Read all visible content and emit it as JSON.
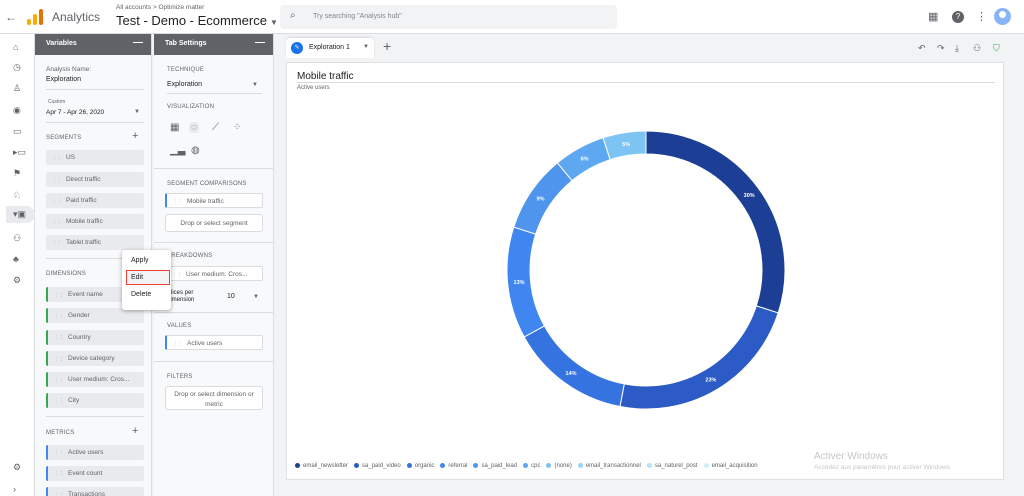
{
  "topbar": {
    "back_icon": "arrow-left-icon",
    "app_name": "Analytics",
    "breadcrumb": "All accounts > Optimize matter",
    "property": "Test - Demo - Ecommerce",
    "search_placeholder": "Try searching \"Analysis hub\"",
    "icons": [
      "apps-icon",
      "help-icon",
      "more-vert-icon",
      "account-icon"
    ]
  },
  "leftnav": {
    "icons": [
      "home-icon",
      "realtime-icon",
      "audience-icon",
      "acquisition-icon",
      "behavior-icon",
      "conversions-icon",
      "flag-icon",
      "attribution-icon",
      "explore-icon",
      "users-icon",
      "hierarchy-icon",
      "admin-icon",
      "settings-icon",
      "expand-icon"
    ]
  },
  "variables": {
    "header": "Variables",
    "analysis_name_label": "Analysis Name:",
    "analysis_name": "Exploration",
    "custom_label": "Custom",
    "date_range": "Apr 7 - Apr 26, 2020",
    "segments_label": "SEGMENTS",
    "segments": [
      "US",
      "Direct traffic",
      "Paid traffic",
      "Mobile traffic",
      "Tablet traffic"
    ],
    "dimensions_label": "DIMENSIONS",
    "dimensions": [
      "Event name",
      "Gender",
      "Country",
      "Device category",
      "User medium: Cros...",
      "City"
    ],
    "metrics_label": "METRICS",
    "metrics": [
      "Active users",
      "Event count",
      "Transactions"
    ]
  },
  "context_menu": {
    "items": [
      "Apply",
      "Edit",
      "Delete"
    ]
  },
  "tab_settings": {
    "header": "Tab Settings",
    "technique_label": "TECHNIQUE",
    "technique": "Exploration",
    "visualization_label": "VISUALIZATION",
    "segment_comparisons_label": "SEGMENT COMPARISONS",
    "segment_comparison": "Mobile traffic",
    "drop_segment": "Drop or select segment",
    "breakdowns_label": "BREAKDOWNS",
    "breakdown": "User medium: Cros...",
    "slices_label_1": "Slices per",
    "slices_label_2": "dimension",
    "slices_value": "10",
    "values_label": "VALUES",
    "value": "Active users",
    "filters_label": "FILTERS",
    "drop_filter_1": "Drop or select dimension or",
    "drop_filter_2": "metric"
  },
  "tabs": {
    "active": "Exploration 1",
    "add_icon": "plus-icon"
  },
  "chart_data": {
    "type": "pie",
    "title": "Mobile traffic",
    "subtitle": "Active users",
    "donut": true,
    "categories": [
      "email_newsletter",
      "sa_paid_video",
      "organic",
      "referral",
      "sa_paid_lead",
      "cpc",
      "(none)",
      "email_transactionnel",
      "sa_naturel_post",
      "email_acquisition"
    ],
    "values": [
      30,
      23,
      14,
      13,
      9,
      6,
      5,
      0,
      0,
      0
    ],
    "labels": [
      "30%",
      "23%",
      "14%",
      "13%",
      "9%",
      "6%",
      "5%",
      "",
      "",
      ""
    ],
    "colors": [
      "#1c3f95",
      "#2d5bc6",
      "#3573e0",
      "#3f86f0",
      "#4f95ee",
      "#5da8f0",
      "#7dc4f2",
      "#9dd3f5",
      "#b7e2f7",
      "#cfeefb"
    ],
    "legend_position": "bottom-left"
  },
  "watermark": {
    "line1": "Activer Windows",
    "line2": "Accédez aux paramètres pour activer Windows."
  }
}
